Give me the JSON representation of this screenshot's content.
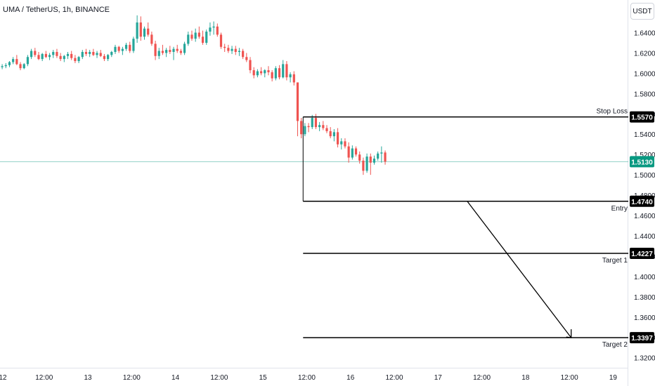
{
  "header": {
    "symbol_line": "UMA / TetherUS, 1h, BINANCE"
  },
  "price_axis": {
    "unit": "USDT"
  },
  "chart_data": {
    "type": "candlestick",
    "title": "UMA / TetherUS, 1h, BINANCE",
    "y_unit": "USDT",
    "ylim": [
      1.31,
      1.66
    ],
    "yticks": [
      1.64,
      1.62,
      1.6,
      1.58,
      1.56,
      1.54,
      1.52,
      1.5,
      1.48,
      1.46,
      1.44,
      1.42,
      1.4,
      1.38,
      1.36,
      1.34,
      1.32
    ],
    "ytick_labels": [
      "1.6400",
      "1.6200",
      "1.6000",
      "1.5800",
      "1.5600",
      "1.5400",
      "1.5200",
      "1.5000",
      "1.4800",
      "1.4600",
      "1.4400",
      "1.4200",
      "1.4000",
      "1.3800",
      "1.3600",
      "1.3400",
      "1.3200"
    ],
    "x_start": "12 00:00",
    "xlim_hours": [
      0,
      170
    ],
    "xticks": [
      {
        "hour": 0,
        "label": "12"
      },
      {
        "hour": 12,
        "label": "12:00"
      },
      {
        "hour": 24,
        "label": "13"
      },
      {
        "hour": 36,
        "label": "12:00"
      },
      {
        "hour": 48,
        "label": "14"
      },
      {
        "hour": 60,
        "label": "12:00"
      },
      {
        "hour": 72,
        "label": "15"
      },
      {
        "hour": 84,
        "label": "12:00"
      },
      {
        "hour": 96,
        "label": "16"
      },
      {
        "hour": 108,
        "label": "12:00"
      },
      {
        "hour": 120,
        "label": "17"
      },
      {
        "hour": 132,
        "label": "12:00"
      },
      {
        "hour": 144,
        "label": "18"
      },
      {
        "hour": 156,
        "label": "12:00"
      },
      {
        "hour": 168,
        "label": "19"
      }
    ],
    "candles": [
      [
        1.606,
        1.609,
        1.604,
        1.607
      ],
      [
        1.607,
        1.61,
        1.605,
        1.608
      ],
      [
        1.608,
        1.612,
        1.606,
        1.611
      ],
      [
        1.611,
        1.616,
        1.609,
        1.614
      ],
      [
        1.614,
        1.618,
        1.608,
        1.609
      ],
      [
        1.609,
        1.611,
        1.603,
        1.605
      ],
      [
        1.605,
        1.61,
        1.604,
        1.609
      ],
      [
        1.609,
        1.618,
        1.607,
        1.616
      ],
      [
        1.616,
        1.624,
        1.614,
        1.622
      ],
      [
        1.622,
        1.625,
        1.616,
        1.618
      ],
      [
        1.618,
        1.621,
        1.613,
        1.614
      ],
      [
        1.614,
        1.62,
        1.612,
        1.619
      ],
      [
        1.619,
        1.622,
        1.615,
        1.616
      ],
      [
        1.616,
        1.62,
        1.613,
        1.618
      ],
      [
        1.618,
        1.623,
        1.615,
        1.621
      ],
      [
        1.621,
        1.624,
        1.615,
        1.617
      ],
      [
        1.617,
        1.62,
        1.612,
        1.614
      ],
      [
        1.614,
        1.618,
        1.611,
        1.617
      ],
      [
        1.617,
        1.621,
        1.614,
        1.619
      ],
      [
        1.619,
        1.622,
        1.613,
        1.615
      ],
      [
        1.615,
        1.618,
        1.61,
        1.612
      ],
      [
        1.612,
        1.617,
        1.61,
        1.616
      ],
      [
        1.616,
        1.623,
        1.614,
        1.621
      ],
      [
        1.621,
        1.624,
        1.617,
        1.619
      ],
      [
        1.619,
        1.623,
        1.616,
        1.621
      ],
      [
        1.621,
        1.624,
        1.617,
        1.618
      ],
      [
        1.618,
        1.622,
        1.615,
        1.62
      ],
      [
        1.62,
        1.623,
        1.616,
        1.617
      ],
      [
        1.617,
        1.619,
        1.612,
        1.614
      ],
      [
        1.614,
        1.619,
        1.612,
        1.618
      ],
      [
        1.618,
        1.622,
        1.616,
        1.621
      ],
      [
        1.621,
        1.628,
        1.619,
        1.626
      ],
      [
        1.626,
        1.627,
        1.62,
        1.622
      ],
      [
        1.622,
        1.626,
        1.618,
        1.624
      ],
      [
        1.624,
        1.63,
        1.622,
        1.628
      ],
      [
        1.628,
        1.631,
        1.62,
        1.622
      ],
      [
        1.622,
        1.636,
        1.62,
        1.634
      ],
      [
        1.634,
        1.657,
        1.63,
        1.65
      ],
      [
        1.65,
        1.656,
        1.632,
        1.636
      ],
      [
        1.636,
        1.646,
        1.633,
        1.644
      ],
      [
        1.644,
        1.65,
        1.636,
        1.638
      ],
      [
        1.638,
        1.641,
        1.627,
        1.629
      ],
      [
        1.629,
        1.632,
        1.613,
        1.617
      ],
      [
        1.617,
        1.625,
        1.614,
        1.622
      ],
      [
        1.622,
        1.628,
        1.618,
        1.62
      ],
      [
        1.62,
        1.625,
        1.616,
        1.623
      ],
      [
        1.623,
        1.627,
        1.619,
        1.621
      ],
      [
        1.621,
        1.626,
        1.613,
        1.624
      ],
      [
        1.624,
        1.628,
        1.62,
        1.622
      ],
      [
        1.622,
        1.624,
        1.618,
        1.62
      ],
      [
        1.62,
        1.631,
        1.618,
        1.629
      ],
      [
        1.629,
        1.641,
        1.627,
        1.638
      ],
      [
        1.638,
        1.642,
        1.632,
        1.634
      ],
      [
        1.634,
        1.644,
        1.631,
        1.64
      ],
      [
        1.64,
        1.646,
        1.634,
        1.636
      ],
      [
        1.636,
        1.642,
        1.628,
        1.63
      ],
      [
        1.63,
        1.643,
        1.628,
        1.641
      ],
      [
        1.641,
        1.65,
        1.637,
        1.645
      ],
      [
        1.645,
        1.651,
        1.638,
        1.646
      ],
      [
        1.646,
        1.649,
        1.636,
        1.638
      ],
      [
        1.638,
        1.64,
        1.624,
        1.626
      ],
      [
        1.626,
        1.629,
        1.621,
        1.625
      ],
      [
        1.625,
        1.628,
        1.62,
        1.622
      ],
      [
        1.622,
        1.627,
        1.619,
        1.624
      ],
      [
        1.624,
        1.627,
        1.618,
        1.621
      ],
      [
        1.621,
        1.625,
        1.617,
        1.622
      ],
      [
        1.622,
        1.624,
        1.614,
        1.616
      ],
      [
        1.616,
        1.62,
        1.611,
        1.613
      ],
      [
        1.613,
        1.616,
        1.6,
        1.603
      ],
      [
        1.603,
        1.606,
        1.595,
        1.598
      ],
      [
        1.598,
        1.604,
        1.596,
        1.602
      ],
      [
        1.602,
        1.606,
        1.598,
        1.6
      ],
      [
        1.6,
        1.604,
        1.596,
        1.603
      ],
      [
        1.603,
        1.607,
        1.598,
        1.601
      ],
      [
        1.601,
        1.603,
        1.592,
        1.595
      ],
      [
        1.595,
        1.607,
        1.593,
        1.605
      ],
      [
        1.605,
        1.608,
        1.594,
        1.596
      ],
      [
        1.596,
        1.613,
        1.595,
        1.609
      ],
      [
        1.609,
        1.612,
        1.593,
        1.596
      ],
      [
        1.596,
        1.601,
        1.591,
        1.599
      ],
      [
        1.599,
        1.602,
        1.588,
        1.591
      ],
      [
        1.591,
        1.591,
        1.538,
        1.553
      ],
      [
        1.553,
        1.556,
        1.536,
        1.54
      ],
      [
        1.54,
        1.551,
        1.538,
        1.548
      ],
      [
        1.548,
        1.551,
        1.542,
        1.547
      ],
      [
        1.547,
        1.559,
        1.545,
        1.556
      ],
      [
        1.556,
        1.56,
        1.545,
        1.547
      ],
      [
        1.547,
        1.552,
        1.543,
        1.549
      ],
      [
        1.549,
        1.553,
        1.544,
        1.546
      ],
      [
        1.546,
        1.549,
        1.541,
        1.543
      ],
      [
        1.543,
        1.547,
        1.536,
        1.538
      ],
      [
        1.538,
        1.545,
        1.533,
        1.542
      ],
      [
        1.542,
        1.546,
        1.527,
        1.53
      ],
      [
        1.53,
        1.536,
        1.525,
        1.533
      ],
      [
        1.533,
        1.536,
        1.526,
        1.528
      ],
      [
        1.528,
        1.532,
        1.512,
        1.517
      ],
      [
        1.517,
        1.529,
        1.515,
        1.526
      ],
      [
        1.526,
        1.528,
        1.518,
        1.52
      ],
      [
        1.52,
        1.523,
        1.511,
        1.514
      ],
      [
        1.514,
        1.517,
        1.5,
        1.504
      ],
      [
        1.504,
        1.521,
        1.502,
        1.518
      ],
      [
        1.518,
        1.521,
        1.5,
        1.512
      ],
      [
        1.512,
        1.519,
        1.51,
        1.516
      ],
      [
        1.516,
        1.523,
        1.514,
        1.521
      ],
      [
        1.521,
        1.528,
        1.512,
        1.522
      ],
      [
        1.522,
        1.524,
        1.51,
        1.513
      ]
    ],
    "colors": {
      "up": "#26a69a",
      "down": "#ef5350",
      "line": "#000000",
      "last_price": "#089981"
    },
    "levels": [
      {
        "label": "Stop Loss",
        "value": 1.557,
        "badge": "1.5570",
        "from_hour": 83,
        "label_pos": "above"
      },
      {
        "label": "Entry",
        "value": 1.474,
        "badge": "1.4740",
        "from_hour": 83,
        "label_pos": "below"
      },
      {
        "label": "Target 1",
        "value": 1.4227,
        "badge": "1.4227",
        "from_hour": 83,
        "label_pos": "below"
      },
      {
        "label": "Target 2",
        "value": 1.3397,
        "badge": "1.3397",
        "from_hour": 83,
        "label_pos": "below"
      }
    ],
    "last_price": {
      "value": 1.513,
      "badge": "1.5130"
    },
    "vertical_marker": {
      "hour": 83,
      "from": 1.557,
      "to": 1.474
    },
    "projection_arrow": {
      "from": {
        "hour": 128,
        "value": 1.474
      },
      "to": {
        "hour": 156.5,
        "value": 1.3397
      }
    }
  }
}
